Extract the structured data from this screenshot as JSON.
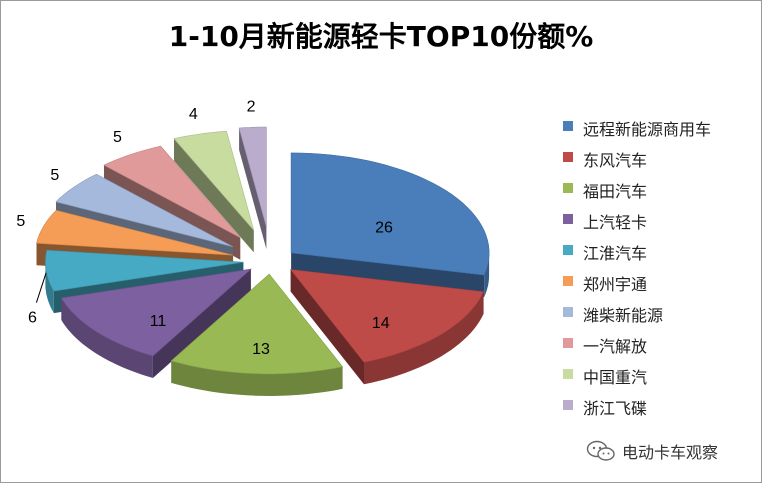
{
  "chart_data": {
    "type": "pie",
    "title": "1-10月新能源轻卡TOP10份额%",
    "categories": [
      "远程新能源商用车",
      "东风汽车",
      "福田汽车",
      "上汽轻卡",
      "江淮汽车",
      "郑州宇通",
      "潍柴新能源",
      "一汽解放",
      "中国重汽",
      "浙江飞碟"
    ],
    "values": [
      26,
      14,
      13,
      11,
      6,
      5,
      5,
      5,
      4,
      2
    ],
    "colors": [
      "#4a7ebb",
      "#be4b48",
      "#98b954",
      "#7d60a0",
      "#46aac5",
      "#f59d56",
      "#a5b9dc",
      "#e09a99",
      "#c8dca0",
      "#b9accd"
    ],
    "legend_position": "right",
    "style": "3d-exploded"
  },
  "watermark": {
    "icon": "wechat-icon",
    "text": "电动卡车观察"
  }
}
